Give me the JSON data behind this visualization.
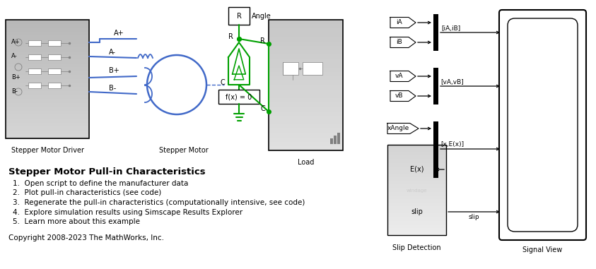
{
  "title": "Stepper Motor Pull-in Characteristics",
  "heading": "Stepper Motor Pull-in Characteristics",
  "list_items": [
    "1.  Open script to define the manufacturer data",
    "2.  Plot pull-in characteristics (see code)",
    "3.  Regenerate the pull-in characteristics (computationally intensive, see code)",
    "4.  Explore simulation results using Simscape Results Explorer",
    "5.  Learn more about this example"
  ],
  "copyright": "Copyright 2008-2023 The MathWorks, Inc.",
  "bg_color": "#ffffff",
  "blue_color": "#4169c8",
  "green_color": "#00a000",
  "driver_label": "Stepper Motor Driver",
  "motor_label": "Stepper Motor",
  "load_label": "Load",
  "slip_label": "Slip Detection",
  "signal_label": "Signal View",
  "angle_label": "Angle",
  "fx_label": "f(x) = 0"
}
